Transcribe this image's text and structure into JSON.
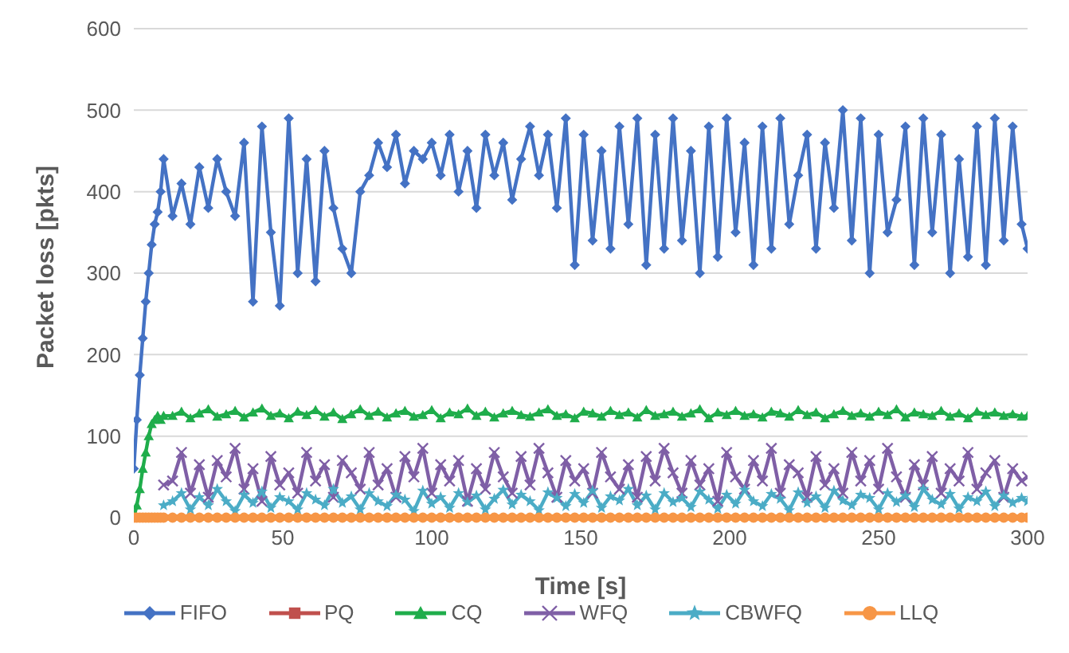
{
  "chart_data": {
    "type": "line",
    "xlabel": "Time [s]",
    "ylabel": "Packet loss [pkts]",
    "x": [
      0,
      1,
      2,
      3,
      4,
      5,
      6,
      7,
      8,
      9,
      10,
      13,
      16,
      19,
      22,
      25,
      28,
      31,
      34,
      37,
      40,
      43,
      46,
      49,
      52,
      55,
      58,
      61,
      64,
      67,
      70,
      73,
      76,
      79,
      82,
      85,
      88,
      91,
      94,
      97,
      100,
      103,
      106,
      109,
      112,
      115,
      118,
      121,
      124,
      127,
      130,
      133,
      136,
      139,
      142,
      145,
      148,
      151,
      154,
      157,
      160,
      163,
      166,
      169,
      172,
      175,
      178,
      181,
      184,
      187,
      190,
      193,
      196,
      199,
      202,
      205,
      208,
      211,
      214,
      217,
      220,
      223,
      226,
      229,
      232,
      235,
      238,
      241,
      244,
      247,
      250,
      253,
      256,
      259,
      262,
      265,
      268,
      271,
      274,
      277,
      280,
      283,
      286,
      289,
      292,
      295,
      298,
      300
    ],
    "series": [
      {
        "name": "FIFO",
        "color": "#4472c4",
        "marker": "diamond",
        "values": [
          60,
          120,
          175,
          220,
          265,
          300,
          335,
          360,
          375,
          400,
          440,
          370,
          410,
          360,
          430,
          380,
          440,
          400,
          370,
          460,
          265,
          480,
          350,
          260,
          490,
          300,
          440,
          290,
          450,
          380,
          330,
          300,
          400,
          420,
          460,
          430,
          470,
          410,
          450,
          440,
          460,
          420,
          470,
          400,
          450,
          380,
          470,
          420,
          460,
          390,
          440,
          480,
          420,
          470,
          380,
          490,
          310,
          470,
          340,
          450,
          330,
          480,
          360,
          490,
          310,
          470,
          330,
          490,
          340,
          450,
          300,
          480,
          320,
          490,
          350,
          460,
          310,
          480,
          330,
          490,
          360,
          420,
          470,
          330,
          460,
          380,
          500,
          340,
          490,
          300,
          470,
          350,
          390,
          480,
          310,
          490,
          350,
          470,
          300,
          440,
          320,
          480,
          310,
          490,
          340,
          480,
          360,
          330
        ]
      },
      {
        "name": "PQ",
        "color": "#c0504d",
        "marker": "square",
        "values": [
          null,
          null,
          null,
          null,
          null,
          null,
          null,
          null,
          null,
          null,
          null,
          null,
          null,
          null,
          null,
          null,
          null,
          null,
          null,
          null,
          null,
          null,
          null,
          null,
          null,
          null,
          null,
          null,
          null,
          null,
          null,
          null,
          null,
          null,
          null,
          null,
          null,
          null,
          null,
          null,
          null,
          null,
          null,
          null,
          null,
          null,
          null,
          null,
          null,
          null,
          null,
          null,
          null,
          null,
          null,
          null,
          null,
          null,
          null,
          null,
          null,
          null,
          null,
          null,
          null,
          null,
          null,
          null,
          null,
          null,
          null,
          null,
          null,
          null,
          null,
          null,
          null,
          null,
          null,
          null,
          null,
          null,
          null,
          null,
          null,
          null,
          null,
          null,
          null,
          null,
          null,
          null,
          null,
          null,
          null,
          null,
          null,
          null,
          null,
          null,
          null,
          null,
          null,
          null,
          null,
          null,
          null,
          null
        ]
      },
      {
        "name": "CQ",
        "color": "#1fad4b",
        "marker": "triangle",
        "values": [
          0,
          15,
          35,
          60,
          80,
          100,
          115,
          120,
          125,
          120,
          125,
          125,
          130,
          122,
          128,
          133,
          124,
          127,
          131,
          123,
          129,
          134,
          125,
          128,
          122,
          130,
          126,
          132,
          124,
          129,
          121,
          127,
          133,
          125,
          130,
          123,
          128,
          131,
          124,
          126,
          132,
          122,
          129,
          127,
          134,
          125,
          130,
          123,
          128,
          131,
          126,
          124,
          129,
          133,
          125,
          127,
          122,
          130,
          128,
          124,
          131,
          126,
          129,
          123,
          132,
          125,
          127,
          130,
          124,
          128,
          133,
          122,
          129,
          126,
          131,
          125,
          127,
          123,
          130,
          128,
          124,
          132,
          126,
          129,
          122,
          127,
          131,
          125,
          128,
          124,
          130,
          126,
          133,
          123,
          129,
          127,
          125,
          131,
          124,
          128,
          122,
          130,
          126,
          129,
          125,
          127,
          124,
          125
        ]
      },
      {
        "name": "WFQ",
        "color": "#7f5fa6",
        "marker": "cross",
        "values": [
          null,
          null,
          null,
          null,
          null,
          null,
          null,
          null,
          null,
          null,
          40,
          45,
          80,
          30,
          65,
          25,
          70,
          50,
          85,
          35,
          60,
          20,
          75,
          40,
          55,
          30,
          80,
          45,
          65,
          25,
          70,
          55,
          35,
          80,
          40,
          60,
          25,
          75,
          50,
          85,
          30,
          65,
          45,
          70,
          20,
          60,
          35,
          80,
          50,
          30,
          75,
          40,
          85,
          55,
          25,
          70,
          45,
          60,
          30,
          80,
          50,
          35,
          65,
          25,
          75,
          45,
          85,
          55,
          30,
          70,
          40,
          60,
          20,
          80,
          50,
          35,
          70,
          45,
          85,
          30,
          65,
          55,
          25,
          75,
          40,
          60,
          30,
          80,
          45,
          70,
          35,
          85,
          50,
          25,
          65,
          40,
          75,
          30,
          60,
          45,
          80,
          35,
          55,
          70,
          25,
          60,
          45,
          50
        ]
      },
      {
        "name": "CBWFQ",
        "color": "#4bacc6",
        "marker": "star",
        "values": [
          null,
          null,
          null,
          null,
          null,
          null,
          null,
          null,
          null,
          null,
          15,
          20,
          30,
          10,
          25,
          15,
          35,
          20,
          8,
          28,
          18,
          32,
          12,
          25,
          20,
          10,
          30,
          22,
          15,
          35,
          18,
          26,
          10,
          30,
          20,
          14,
          28,
          22,
          8,
          33,
          17,
          25,
          12,
          30,
          19,
          27,
          10,
          23,
          34,
          16,
          28,
          20,
          9,
          31,
          24,
          14,
          29,
          18,
          33,
          12,
          26,
          21,
          35,
          15,
          27,
          10,
          30,
          19,
          24,
          13,
          32,
          22,
          11,
          28,
          17,
          34,
          20,
          14,
          29,
          23,
          9,
          31,
          18,
          26,
          12,
          33,
          21,
          15,
          28,
          24,
          10,
          30,
          19,
          27,
          13,
          35,
          22,
          16,
          29,
          11,
          25,
          20,
          32,
          14,
          27,
          18,
          24,
          20
        ]
      },
      {
        "name": "LLQ",
        "color": "#f79646",
        "marker": "circle",
        "values": [
          0,
          0,
          0,
          0,
          0,
          0,
          0,
          0,
          0,
          0,
          0,
          0,
          0,
          0,
          0,
          0,
          0,
          0,
          0,
          0,
          0,
          0,
          0,
          0,
          0,
          0,
          0,
          0,
          0,
          0,
          0,
          0,
          0,
          0,
          0,
          0,
          0,
          0,
          0,
          0,
          0,
          0,
          0,
          0,
          0,
          0,
          0,
          0,
          0,
          0,
          0,
          0,
          0,
          0,
          0,
          0,
          0,
          0,
          0,
          0,
          0,
          0,
          0,
          0,
          0,
          0,
          0,
          0,
          0,
          0,
          0,
          0,
          0,
          0,
          0,
          0,
          0,
          0,
          0,
          0,
          0,
          0,
          0,
          0,
          0,
          0,
          0,
          0,
          0,
          0,
          0,
          0,
          0,
          0,
          0,
          0,
          0,
          0,
          0,
          0,
          0,
          0,
          0,
          0,
          0,
          0,
          0,
          0
        ]
      }
    ],
    "xlim": [
      0,
      300
    ],
    "xticks": [
      0,
      50,
      100,
      150,
      200,
      250,
      300
    ],
    "ylim": [
      0,
      600
    ],
    "yticks": [
      0,
      100,
      200,
      300,
      400,
      500,
      600
    ],
    "grid": "y",
    "legend": "bottom",
    "line_style": "solid"
  }
}
